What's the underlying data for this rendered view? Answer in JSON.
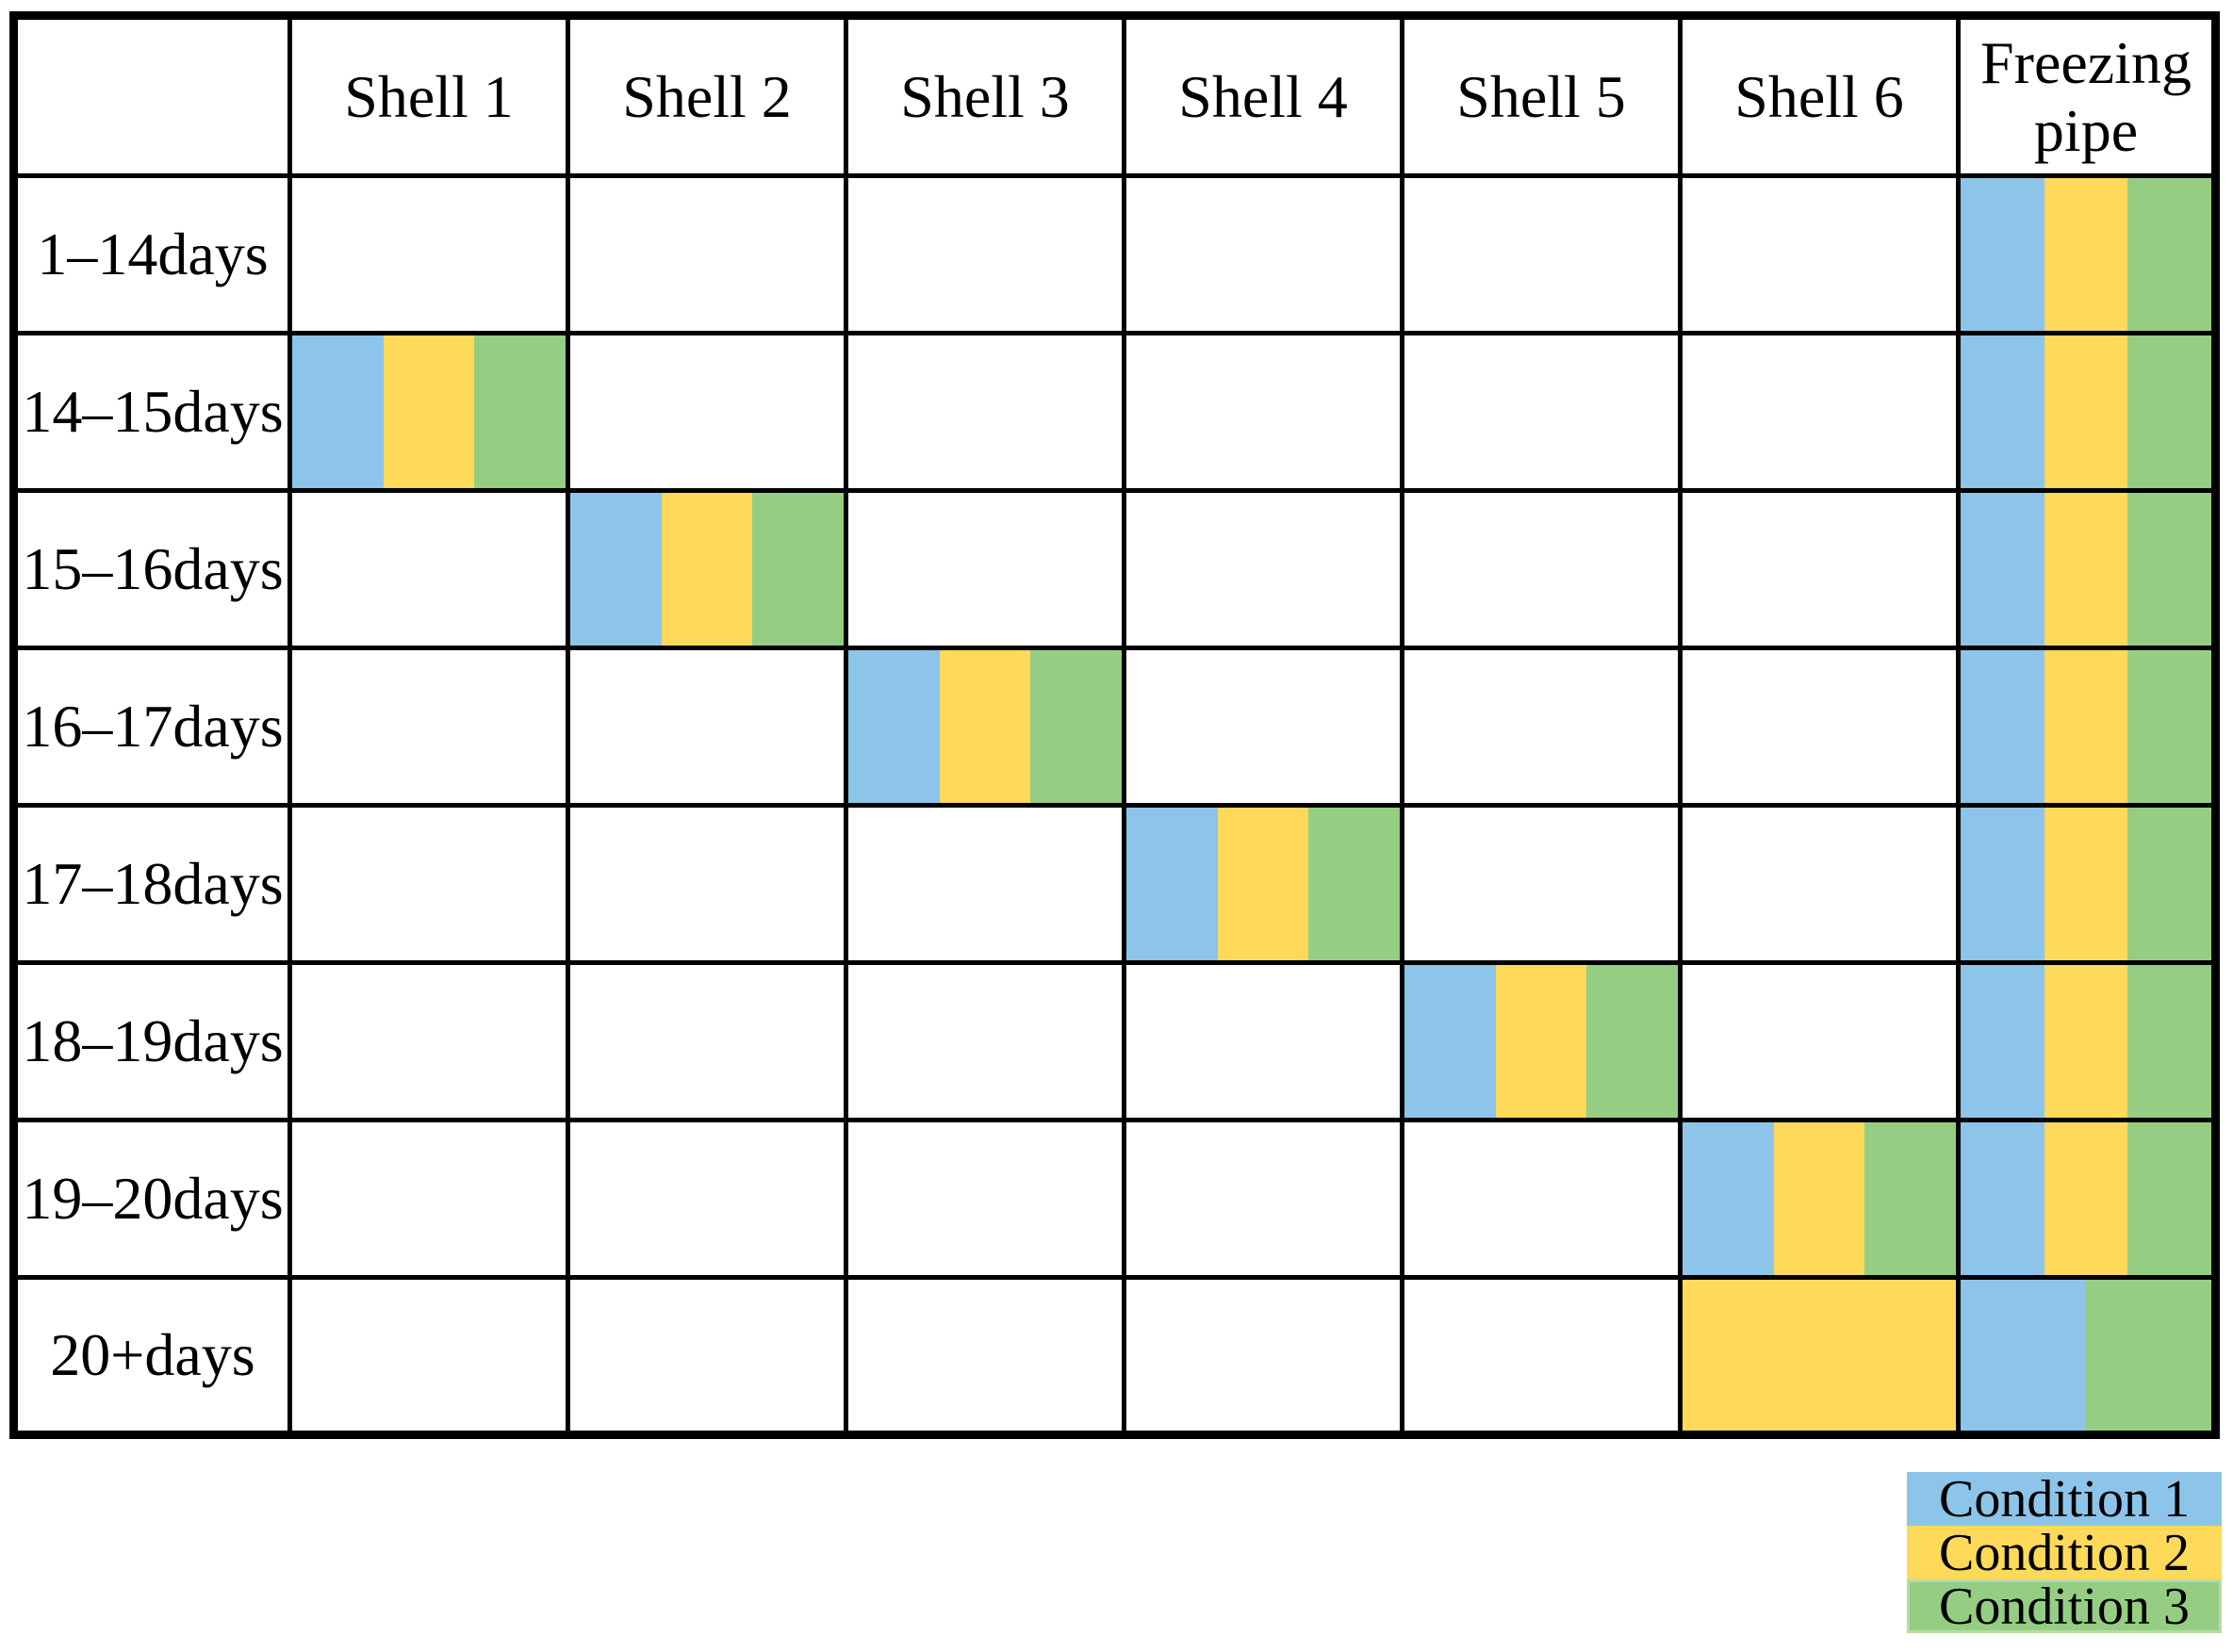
{
  "page": {
    "background": "#ffffff",
    "grid_line_color": "#000000"
  },
  "chart_data": {
    "type": "table",
    "grid": true,
    "legend_position": "bottom-right",
    "corner_label": "",
    "columns": [
      "Shell 1",
      "Shell 2",
      "Shell 3",
      "Shell 4",
      "Shell 5",
      "Shell 6",
      "Freezing pipe"
    ],
    "row_labels": [
      "1–14days",
      "14–15days",
      "15–16days",
      "16–17days",
      "17–18days",
      "18–19days",
      "19–20days",
      "20+days"
    ],
    "palette": {
      "c1": "#8CC5E9",
      "c2": "#FFD95A",
      "c3": "#95CE82"
    },
    "legend": [
      {
        "key": "c1",
        "label": "Condition 1",
        "color": "#8CC5E9"
      },
      {
        "key": "c2",
        "label": "Condition 2",
        "color": "#FFD95A"
      },
      {
        "key": "c3",
        "label": "Condition 3",
        "color": "#95CE82",
        "border": "#B7DCA6"
      }
    ],
    "cells": [
      {
        "row": "1–14days",
        "col": "Freezing pipe",
        "stripes": [
          "c1",
          "c2",
          "c3"
        ]
      },
      {
        "row": "14–15days",
        "col": "Shell 1",
        "stripes": [
          "c1",
          "c2",
          "c3"
        ]
      },
      {
        "row": "14–15days",
        "col": "Freezing pipe",
        "stripes": [
          "c1",
          "c2",
          "c3"
        ]
      },
      {
        "row": "15–16days",
        "col": "Shell 2",
        "stripes": [
          "c1",
          "c2",
          "c3"
        ]
      },
      {
        "row": "15–16days",
        "col": "Freezing pipe",
        "stripes": [
          "c1",
          "c2",
          "c3"
        ]
      },
      {
        "row": "16–17days",
        "col": "Shell 3",
        "stripes": [
          "c1",
          "c2",
          "c3"
        ]
      },
      {
        "row": "16–17days",
        "col": "Freezing pipe",
        "stripes": [
          "c1",
          "c2",
          "c3"
        ]
      },
      {
        "row": "17–18days",
        "col": "Shell 4",
        "stripes": [
          "c1",
          "c2",
          "c3"
        ]
      },
      {
        "row": "17–18days",
        "col": "Freezing pipe",
        "stripes": [
          "c1",
          "c2",
          "c3"
        ]
      },
      {
        "row": "18–19days",
        "col": "Shell 5",
        "stripes": [
          "c1",
          "c2",
          "c3"
        ]
      },
      {
        "row": "18–19days",
        "col": "Freezing pipe",
        "stripes": [
          "c1",
          "c2",
          "c3"
        ]
      },
      {
        "row": "19–20days",
        "col": "Shell 6",
        "stripes": [
          "c1",
          "c2",
          "c3"
        ]
      },
      {
        "row": "19–20days",
        "col": "Freezing pipe",
        "stripes": [
          "c1",
          "c2",
          "c3"
        ]
      },
      {
        "row": "20+days",
        "col": "Shell 6",
        "stripes": [
          "c2"
        ]
      },
      {
        "row": "20+days",
        "col": "Freezing pipe",
        "stripes": [
          "c1",
          "c3"
        ]
      }
    ]
  }
}
